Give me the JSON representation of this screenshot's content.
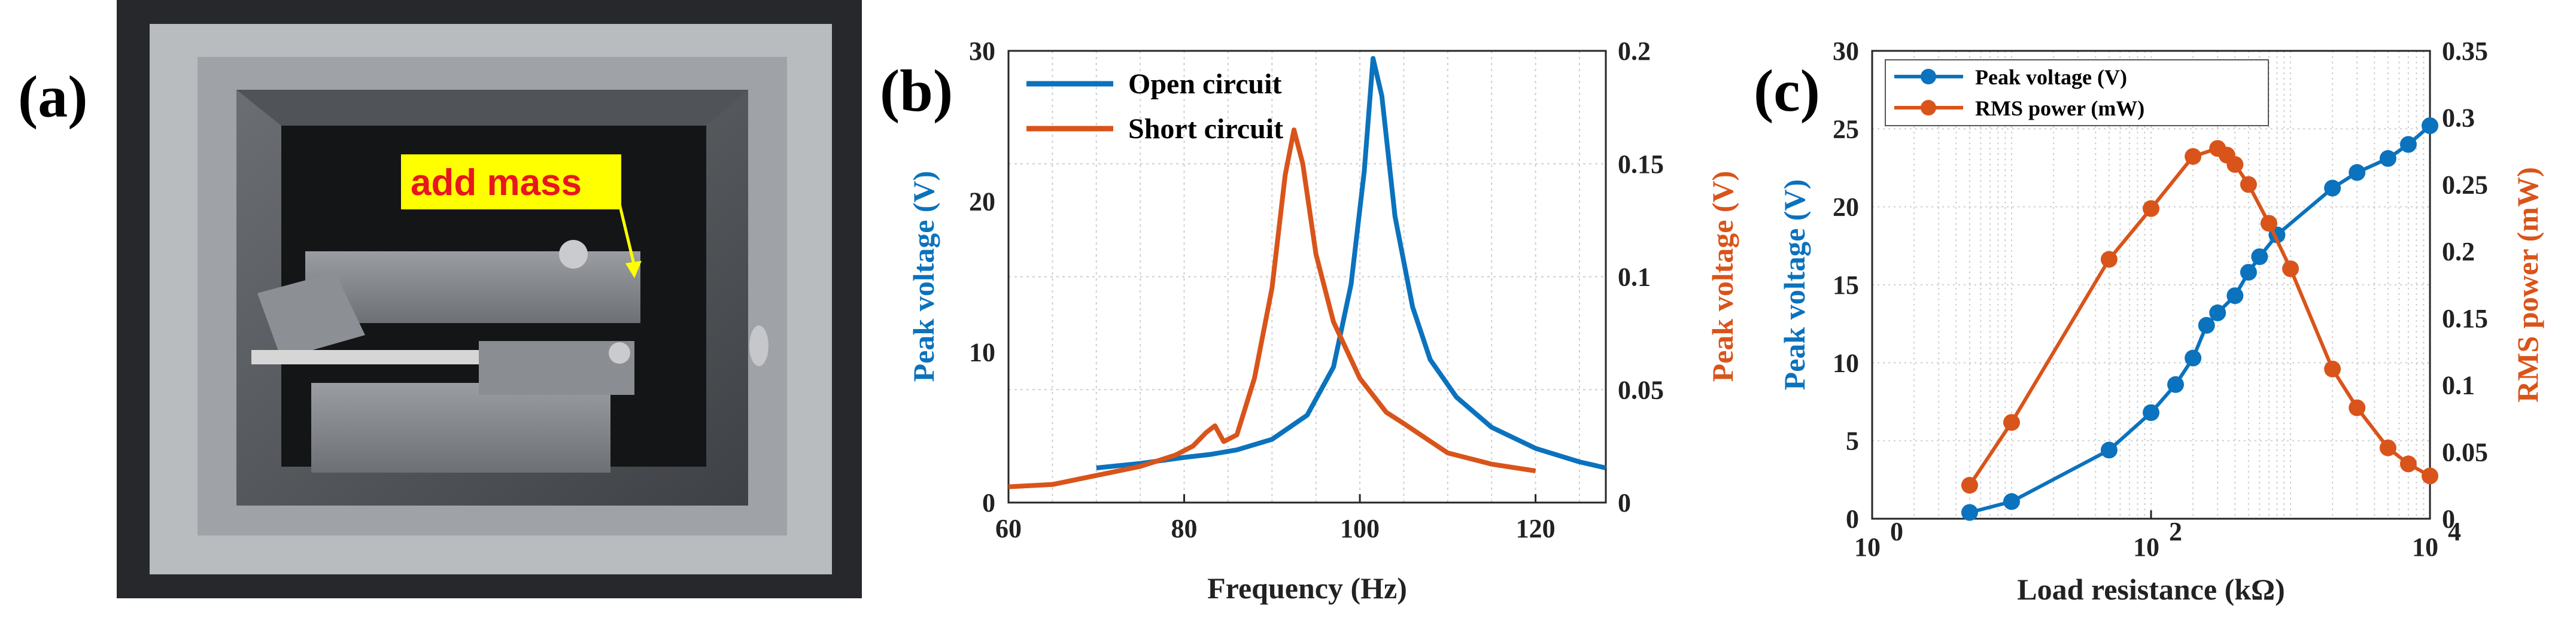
{
  "colors": {
    "blue": "#0b72bd",
    "orange": "#d9541a",
    "yellow": "#ffff00",
    "tag_red": "#e8161d"
  },
  "panel_a": {
    "label": "(a)",
    "annotation": "add mass"
  },
  "panel_b": {
    "label": "(b)",
    "chart_data": {
      "type": "line",
      "xlabel": "Frequency (Hz)",
      "ylabel_left": "Peak voltage (V)",
      "ylabel_right": "Peak voltage (V)",
      "xlim": [
        60,
        128
      ],
      "ylim_left": [
        0,
        30
      ],
      "ylim_right": [
        0,
        0.2
      ],
      "xticks": [
        "60",
        "80",
        "100",
        "120"
      ],
      "yticks_left": [
        "0",
        "10",
        "20",
        "30"
      ],
      "yticks_right": [
        "0",
        "0.05",
        "0.1",
        "0.15",
        "0.2"
      ],
      "grid": true,
      "legend": "top-left",
      "series": [
        {
          "name": "Open circuit",
          "axis": "left",
          "color": "#0b72bd",
          "x": [
            70,
            75,
            80,
            83,
            86,
            90,
            94,
            97,
            99,
            100.5,
            101.5,
            102.5,
            104,
            106,
            108,
            111,
            115,
            120,
            125,
            128
          ],
          "y": [
            2.3,
            2.6,
            3.0,
            3.2,
            3.5,
            4.2,
            5.8,
            9.0,
            14.5,
            22.0,
            29.5,
            27.0,
            19.0,
            13.0,
            9.5,
            7.0,
            5.0,
            3.6,
            2.7,
            2.3
          ]
        },
        {
          "name": "Short circuit",
          "axis": "right",
          "color": "#d9541a",
          "x": [
            60,
            65,
            70,
            75,
            79,
            81,
            82.5,
            83.5,
            84.5,
            86,
            88,
            90,
            91.5,
            92.5,
            93.5,
            95,
            97,
            100,
            103,
            105,
            110,
            115,
            120
          ],
          "y": [
            0.007,
            0.008,
            0.012,
            0.016,
            0.021,
            0.025,
            0.031,
            0.034,
            0.027,
            0.03,
            0.055,
            0.095,
            0.145,
            0.165,
            0.15,
            0.11,
            0.08,
            0.055,
            0.04,
            0.035,
            0.022,
            0.017,
            0.014
          ]
        }
      ]
    }
  },
  "panel_c": {
    "label": "(c)",
    "chart_data": {
      "type": "line",
      "xscale": "log",
      "xlabel": "Load resistance (kΩ)",
      "ylabel_left": "Peak voltage (V)",
      "ylabel_right": "RMS power (mW)",
      "xlim": [
        1,
        10000
      ],
      "ylim_left": [
        0,
        30
      ],
      "ylim_right": [
        0,
        0.35
      ],
      "xticks": [
        {
          "value": 1,
          "base": "10",
          "exp": "0"
        },
        {
          "value": 100,
          "base": "10",
          "exp": "2"
        },
        {
          "value": 10000,
          "base": "10",
          "exp": "4"
        }
      ],
      "yticks_left": [
        "0",
        "5",
        "10",
        "15",
        "20",
        "25",
        "30"
      ],
      "yticks_right": [
        "0",
        "0.05",
        "0.1",
        "0.15",
        "0.2",
        "0.25",
        "0.3",
        "0.35"
      ],
      "grid": true,
      "legend": "top-left",
      "series": [
        {
          "name": "Peak voltage (V)",
          "axis": "left",
          "color": "#0b72bd",
          "x": [
            5,
            10,
            50,
            100,
            150,
            200,
            250,
            300,
            400,
            500,
            600,
            800,
            2000,
            3000,
            5000,
            7000,
            10000
          ],
          "y": [
            0.4,
            1.1,
            4.4,
            6.8,
            8.6,
            10.3,
            12.4,
            13.2,
            14.3,
            15.8,
            16.8,
            18.2,
            21.2,
            22.2,
            23.1,
            24.0,
            25.2
          ]
        },
        {
          "name": "RMS power (mW)",
          "axis": "right",
          "color": "#d9541a",
          "x": [
            5,
            10,
            50,
            100,
            200,
            300,
            350,
            400,
            500,
            700,
            1000,
            2000,
            3000,
            5000,
            7000,
            10000
          ],
          "y": [
            0.025,
            0.072,
            0.194,
            0.232,
            0.271,
            0.277,
            0.272,
            0.265,
            0.25,
            0.221,
            0.187,
            0.112,
            0.083,
            0.053,
            0.041,
            0.032
          ]
        }
      ]
    }
  }
}
